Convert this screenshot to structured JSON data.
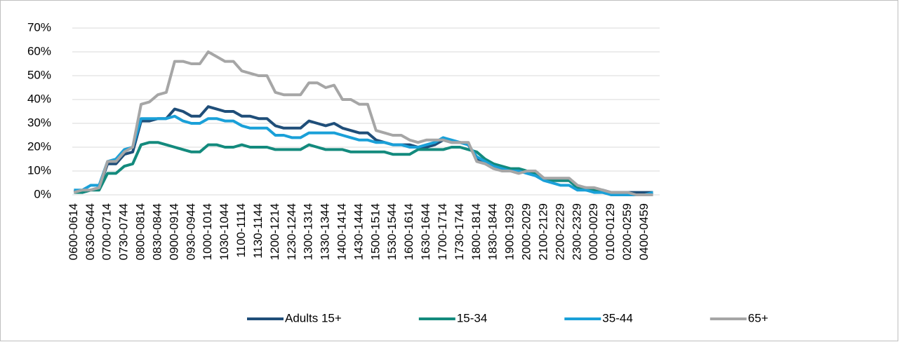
{
  "chart_data": {
    "type": "line",
    "categories": [
      "0600-0614",
      null,
      "0630-0644",
      null,
      "0700-0714",
      null,
      "0730-0744",
      null,
      "0800-0814",
      null,
      "0830-0844",
      null,
      "0900-0914",
      null,
      "0930-0944",
      null,
      "1000-1014",
      null,
      "1030-1044",
      null,
      "1100-1114",
      null,
      "1130-1144",
      null,
      "1200-1214",
      null,
      "1230-1244",
      null,
      "1300-1314",
      null,
      "1330-1344",
      null,
      "1400-1414",
      null,
      "1430-1444",
      null,
      "1500-1514",
      null,
      "1530-1544",
      null,
      "1600-1614",
      null,
      "1630-1644",
      null,
      "1700-1714",
      null,
      "1730-1744",
      null,
      "1800-1814",
      null,
      "1830-1844",
      null,
      "1900-1929",
      null,
      "2000-2029",
      null,
      "2100-2129",
      null,
      "2200-2229",
      null,
      "2300-2329",
      null,
      "0000-0029",
      null,
      "0100-0129",
      null,
      "0200-0259",
      null,
      "0400-0459",
      null
    ],
    "series": [
      {
        "name": "Adults 15+",
        "color": "#1f4e79",
        "values": [
          2,
          1,
          2,
          3,
          13,
          13,
          17,
          18,
          31,
          31,
          32,
          32,
          36,
          35,
          33,
          33,
          37,
          36,
          35,
          35,
          33,
          33,
          32,
          32,
          29,
          28,
          28,
          28,
          31,
          30,
          29,
          30,
          28,
          27,
          26,
          26,
          23,
          22,
          21,
          21,
          21,
          20,
          20,
          21,
          23,
          22,
          22,
          21,
          15,
          14,
          12,
          11,
          10,
          10,
          10,
          9,
          7,
          6,
          6,
          6,
          3,
          3,
          2,
          2,
          1,
          1,
          1,
          1,
          1,
          1
        ]
      },
      {
        "name": "15-34",
        "color": "#138a7d",
        "values": [
          1,
          1,
          2,
          2,
          9,
          9,
          12,
          13,
          21,
          22,
          22,
          21,
          20,
          19,
          18,
          18,
          21,
          21,
          20,
          20,
          21,
          20,
          20,
          20,
          19,
          19,
          19,
          19,
          21,
          20,
          19,
          19,
          19,
          18,
          18,
          18,
          18,
          18,
          17,
          17,
          17,
          19,
          19,
          19,
          19,
          20,
          20,
          19,
          18,
          15,
          13,
          12,
          11,
          11,
          10,
          9,
          7,
          6,
          6,
          6,
          3,
          2,
          2,
          1,
          1,
          0,
          0,
          0,
          0,
          0
        ]
      },
      {
        "name": "35-44",
        "color": "#1aa0d8",
        "values": [
          2,
          2,
          4,
          4,
          14,
          15,
          19,
          20,
          32,
          32,
          32,
          32,
          33,
          31,
          30,
          30,
          32,
          32,
          31,
          31,
          29,
          28,
          28,
          28,
          25,
          25,
          24,
          24,
          26,
          26,
          26,
          26,
          25,
          24,
          23,
          23,
          22,
          22,
          21,
          21,
          20,
          20,
          21,
          22,
          24,
          23,
          22,
          21,
          16,
          14,
          12,
          11,
          10,
          10,
          9,
          8,
          6,
          5,
          4,
          4,
          2,
          2,
          1,
          1,
          0,
          0,
          0,
          0,
          0,
          1
        ]
      },
      {
        "name": "65+",
        "color": "#a6a6a6",
        "values": [
          1,
          2,
          2,
          3,
          14,
          14,
          18,
          20,
          38,
          39,
          42,
          43,
          56,
          56,
          55,
          55,
          60,
          58,
          56,
          56,
          52,
          51,
          50,
          50,
          43,
          42,
          42,
          42,
          47,
          47,
          45,
          46,
          40,
          40,
          38,
          38,
          27,
          26,
          25,
          25,
          23,
          22,
          23,
          23,
          23,
          22,
          22,
          22,
          14,
          13,
          11,
          10,
          10,
          9,
          10,
          10,
          7,
          7,
          7,
          7,
          4,
          3,
          3,
          2,
          1,
          1,
          1,
          0,
          0,
          0
        ]
      }
    ],
    "ylim": [
      0,
      70
    ],
    "yticks": [
      {
        "value": 0,
        "label": "0%"
      },
      {
        "value": 10,
        "label": "10%"
      },
      {
        "value": 20,
        "label": "20%"
      },
      {
        "value": 30,
        "label": "30%"
      },
      {
        "value": 40,
        "label": "40%"
      },
      {
        "value": 50,
        "label": "50%"
      },
      {
        "value": 60,
        "label": "60%"
      },
      {
        "value": 70,
        "label": "70%"
      }
    ],
    "grid": true,
    "legend": "bottom"
  }
}
